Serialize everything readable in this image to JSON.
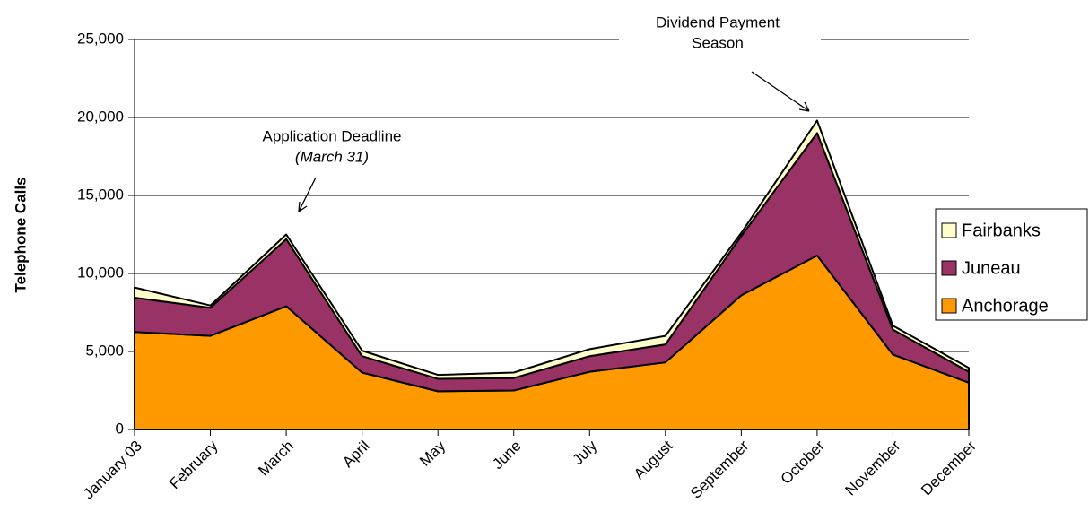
{
  "chart_data": {
    "type": "stacked_area",
    "y_label": "Telephone Calls",
    "categories": [
      "January 03",
      "February",
      "March",
      "April",
      "May",
      "June",
      "July",
      "August",
      "September",
      "October",
      "November",
      "December"
    ],
    "series": [
      {
        "name": "Anchorage",
        "color": "#ff9900",
        "values": [
          6250,
          6000,
          7900,
          3650,
          2450,
          2500,
          3700,
          4300,
          8600,
          11150,
          4800,
          3000
        ]
      },
      {
        "name": "Juneau",
        "color": "#993366",
        "values": [
          2200,
          1800,
          4300,
          1050,
          800,
          800,
          1000,
          1150,
          3800,
          7850,
          1600,
          700
        ]
      },
      {
        "name": "Fairbanks",
        "color": "#ffffcc",
        "values": [
          650,
          150,
          300,
          350,
          250,
          350,
          450,
          550,
          200,
          800,
          250,
          250
        ]
      }
    ],
    "ylim": [
      0,
      25000
    ],
    "yticks": [
      0,
      {
        "value": 5000,
        "label": "5,000"
      },
      {
        "value": 10000,
        "label": "10,000"
      },
      {
        "value": 15000,
        "label": "15,000"
      },
      {
        "value": 20000,
        "label": "20,000"
      },
      {
        "value": 25000,
        "label": "25,000"
      }
    ],
    "grid": true,
    "legend": "right",
    "annotations": [
      {
        "lines": [
          "Application Deadline",
          "(March 31)"
        ]
      },
      {
        "lines": [
          "Dividend Payment",
          "Season"
        ]
      }
    ]
  }
}
